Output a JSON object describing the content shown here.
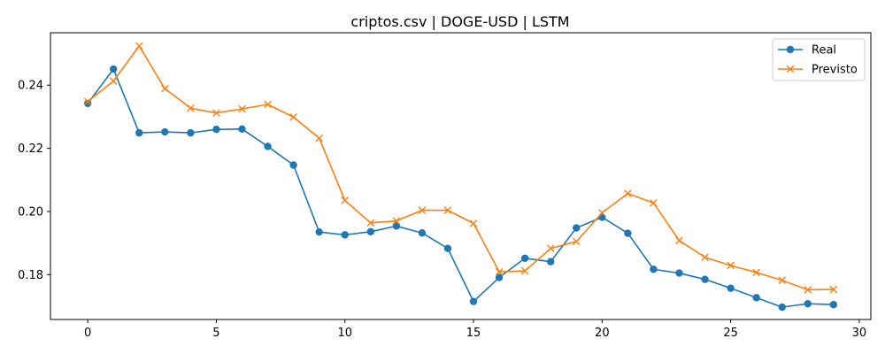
{
  "chart_data": {
    "type": "line",
    "title": "criptos.csv | DOGE-USD | LSTM",
    "xlabel": "",
    "ylabel": "",
    "xlim": [
      -1.45,
      30.45
    ],
    "ylim": [
      0.1658,
      0.2566
    ],
    "xticks": [
      0,
      5,
      10,
      15,
      20,
      25,
      30
    ],
    "xtick_labels": [
      "0",
      "5",
      "10",
      "15",
      "20",
      "25",
      "30"
    ],
    "yticks": [
      0.18,
      0.2,
      0.22,
      0.24
    ],
    "ytick_labels": [
      "0.18",
      "0.20",
      "0.22",
      "0.24"
    ],
    "grid": false,
    "legend": "top-right",
    "x": [
      0,
      1,
      2,
      3,
      4,
      5,
      6,
      7,
      8,
      9,
      10,
      11,
      12,
      13,
      14,
      15,
      16,
      17,
      18,
      19,
      20,
      21,
      22,
      23,
      24,
      25,
      26,
      27,
      28,
      29
    ],
    "series": [
      {
        "name": "Real",
        "marker": "circle",
        "color": "#1f77b4",
        "values": [
          0.2342,
          0.2451,
          0.2249,
          0.2252,
          0.2249,
          0.226,
          0.2261,
          0.2206,
          0.2147,
          0.1935,
          0.1926,
          0.1936,
          0.1954,
          0.1932,
          0.1883,
          0.1715,
          0.1791,
          0.1852,
          0.1841,
          0.1948,
          0.1982,
          0.1931,
          0.1817,
          0.1805,
          0.1785,
          0.1757,
          0.1727,
          0.1697,
          0.1708,
          0.1705
        ]
      },
      {
        "name": "Previsto",
        "marker": "x",
        "color": "#ff7f0e",
        "values": [
          0.2348,
          0.2413,
          0.2524,
          0.2389,
          0.2327,
          0.2312,
          0.2325,
          0.2339,
          0.2299,
          0.2232,
          0.2035,
          0.1964,
          0.197,
          0.2004,
          0.2004,
          0.1962,
          0.1809,
          0.1812,
          0.1883,
          0.1905,
          0.1996,
          0.2057,
          0.2027,
          0.1908,
          0.1855,
          0.1829,
          0.1807,
          0.1782,
          0.1752,
          0.1753
        ]
      }
    ]
  }
}
